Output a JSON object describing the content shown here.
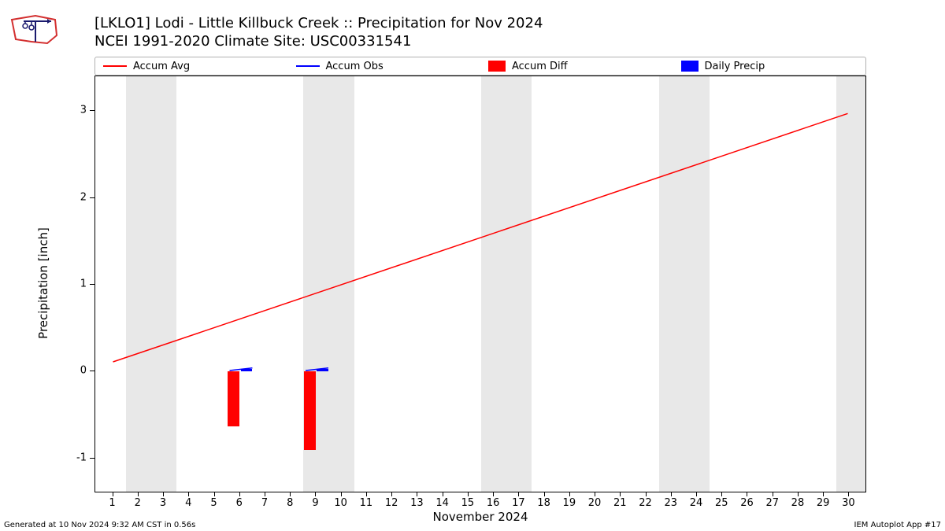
{
  "title_line1": "[LKLO1] Lodi - Little Killbuck Creek :: Precipitation for Nov 2024",
  "title_line2": "NCEI 1991-2020 Climate Site: USC00331541",
  "y_axis_label": "Precipitation [inch]",
  "x_axis_label": "November 2024",
  "footer_left": "Generated at 10 Nov 2024 9:32 AM CST in 0.56s",
  "footer_right": "IEM Autoplot App #17",
  "legend": [
    {
      "label": "Accum Avg",
      "type": "line",
      "color": "#ff0000"
    },
    {
      "label": "Accum Obs",
      "type": "line",
      "color": "#0000ff"
    },
    {
      "label": "Accum Diff",
      "type": "box",
      "color": "#ff0000"
    },
    {
      "label": "Daily Precip",
      "type": "box",
      "color": "#0000ff"
    }
  ],
  "chart": {
    "type": "chart",
    "background_color": "#ffffff",
    "weekend_band_color": "#e8e8e8",
    "grid_color": "#d0d0d0",
    "xlim": [
      0.3,
      30.7
    ],
    "ylim": [
      -1.4,
      3.4
    ],
    "ytick_step": 1,
    "yticks": [
      -1,
      0,
      1,
      2,
      3
    ],
    "xticks": [
      1,
      2,
      3,
      4,
      5,
      6,
      7,
      8,
      9,
      10,
      11,
      12,
      13,
      14,
      15,
      16,
      17,
      18,
      19,
      20,
      21,
      22,
      23,
      24,
      25,
      26,
      27,
      28,
      29,
      30
    ],
    "weekend_bands": [
      [
        1.5,
        3.5
      ],
      [
        8.5,
        10.5
      ],
      [
        15.5,
        17.5
      ],
      [
        22.5,
        24.5
      ],
      [
        29.5,
        30.7
      ]
    ],
    "accum_avg": {
      "color": "#ff0000",
      "line_width": 1.5,
      "points": [
        [
          1,
          0.1
        ],
        [
          30,
          2.97
        ]
      ]
    },
    "accum_obs": {
      "color": "#0000ff",
      "line_width": 1.5,
      "segments": [
        [
          [
            5.6,
            0.0
          ],
          [
            6.5,
            0.03
          ]
        ],
        [
          [
            8.6,
            0.0
          ],
          [
            9.5,
            0.03
          ]
        ]
      ]
    },
    "accum_diff_bars": {
      "color": "#ff0000",
      "bar_width_days": 0.45,
      "bars": [
        {
          "x": 5.75,
          "value": -0.63
        },
        {
          "x": 8.75,
          "value": -0.9
        }
      ]
    },
    "daily_precip_bars": {
      "color": "#0000ff",
      "bar_width_days": 0.45,
      "bars": [
        {
          "x": 6.25,
          "value": 0.03
        },
        {
          "x": 9.25,
          "value": 0.03
        }
      ]
    }
  },
  "logo_colors": {
    "outline": "#d32f2f",
    "vane": "#1a1a6e"
  }
}
